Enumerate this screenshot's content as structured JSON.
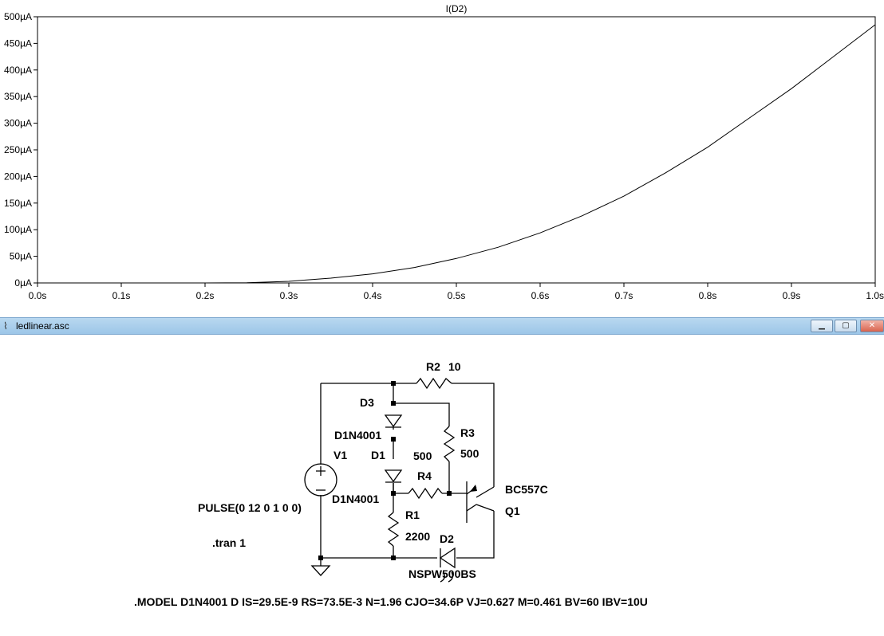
{
  "plot": {
    "trace_title": "I(D2)",
    "chart_data": {
      "type": "line",
      "title": "I(D2)",
      "xlabel": "",
      "ylabel": "",
      "xlim": [
        0,
        1.0
      ],
      "ylim": [
        0,
        500
      ],
      "x_unit": "s",
      "y_unit": "µA",
      "x_ticks": [
        "0.0s",
        "0.1s",
        "0.2s",
        "0.3s",
        "0.4s",
        "0.5s",
        "0.6s",
        "0.7s",
        "0.8s",
        "0.9s",
        "1.0s"
      ],
      "y_ticks": [
        "0µA",
        "50µA",
        "100µA",
        "150µA",
        "200µA",
        "250µA",
        "300µA",
        "350µA",
        "400µA",
        "450µA",
        "500µA"
      ],
      "grid": false,
      "series": [
        {
          "name": "I(D2)",
          "x": [
            0.0,
            0.1,
            0.2,
            0.25,
            0.3,
            0.35,
            0.4,
            0.45,
            0.5,
            0.55,
            0.6,
            0.65,
            0.7,
            0.75,
            0.8,
            0.85,
            0.9,
            0.95,
            1.0
          ],
          "y": [
            0,
            0,
            0,
            0.5,
            3,
            9,
            17,
            29,
            46,
            67,
            94,
            126,
            163,
            207,
            255,
            310,
            365,
            425,
            485
          ]
        }
      ]
    }
  },
  "window": {
    "title": "ledlinear.asc",
    "minimize_glyph": "▁",
    "maximize_glyph": "▢",
    "close_glyph": "✕",
    "app_icon_name": "schematic-icon",
    "app_icon_glyph": "⌇"
  },
  "schematic": {
    "labels": {
      "r2": "R2",
      "r2_value": "10",
      "d3": "D3",
      "d3_model": "D1N4001",
      "d1": "D1",
      "d1_model": "D1N4001",
      "r3": "R3",
      "r3_value": "500",
      "r4_value": "500",
      "r4": "R4",
      "v1": "V1",
      "v1_source": "PULSE(0 12 0 1 0 0)",
      "tran": ".tran 1",
      "r1": "R1",
      "r1_value": "2200",
      "d2": "D2",
      "d2_model": "NSPW500BS",
      "q1_model": "BC557C",
      "q1": "Q1",
      "model_directive": ".MODEL D1N4001 D IS=29.5E-9 RS=73.5E-3 N=1.96 CJO=34.6P VJ=0.627 M=0.461 BV=60 IBV=10U"
    }
  }
}
